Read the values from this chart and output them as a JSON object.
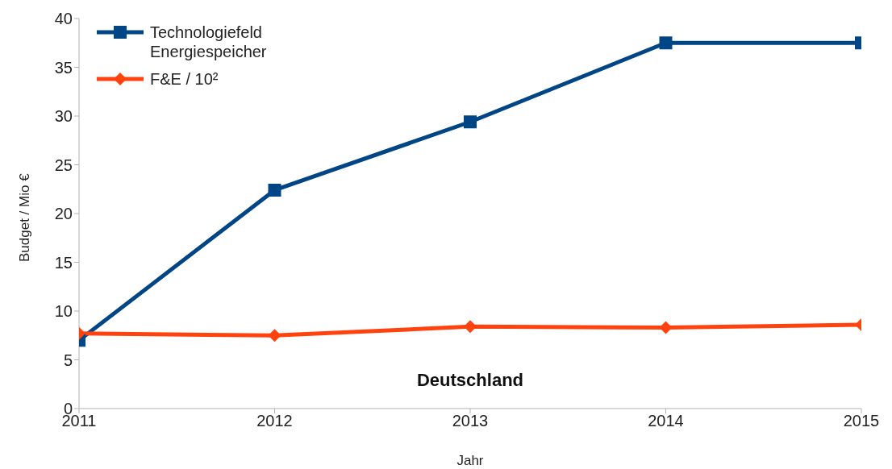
{
  "chart_data": {
    "type": "line",
    "xlabel": "Jahr",
    "ylabel": "Budget / Mio €",
    "x": [
      2011,
      2012,
      2013,
      2014,
      2015
    ],
    "series": [
      {
        "name": "Technologiefeld Energiespeicher",
        "color": "#004586",
        "marker": "square",
        "values": [
          7.0,
          22.4,
          29.4,
          37.5,
          37.5
        ]
      },
      {
        "name": "F&E / 10²",
        "color": "#ff420e",
        "marker": "diamond",
        "values": [
          7.7,
          7.5,
          8.4,
          8.3,
          8.6
        ]
      }
    ],
    "xlim": [
      2011,
      2015
    ],
    "xticks": [
      2011,
      2012,
      2013,
      2014,
      2015
    ],
    "ylim": [
      0,
      40
    ],
    "yticks": [
      0,
      5,
      10,
      15,
      20,
      25,
      30,
      35,
      40
    ],
    "grid": false,
    "legend": "top left",
    "line_style": "solid",
    "annotations": [
      "Deutschland"
    ]
  }
}
